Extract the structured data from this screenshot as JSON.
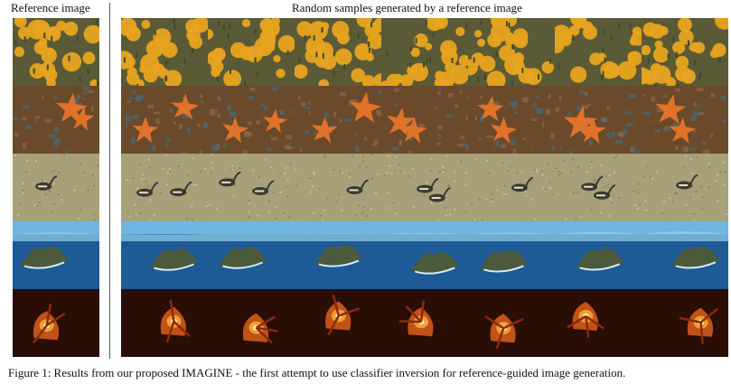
{
  "headers": {
    "reference": "Reference image",
    "samples": "Random samples generated by a reference image"
  },
  "caption": "Figure 1: Results from our proposed IMAGINE - the first attempt to use classifier inversion for reference-guided image generation.",
  "rows": [
    {
      "subject": "orange flowers",
      "sample_count": 7
    },
    {
      "subject": "starfish",
      "sample_count": 7
    },
    {
      "subject": "water bird",
      "sample_count": 7
    },
    {
      "subject": "island",
      "sample_count": 7
    },
    {
      "subject": "fire",
      "sample_count": 7
    }
  ],
  "colors": {
    "flowers_bg": "#5b5a36",
    "flower": "#e8a420",
    "starfish_bg": "#6a4a2a",
    "starfish": "#e0722a",
    "bird_bg": "#a8a078",
    "bird": "#3a3a30",
    "sea": "#1d5a96",
    "sky": "#6fb6e0",
    "island": "#4a5a3a",
    "fire_bg": "#2a0e06",
    "fire": "#f0a030"
  }
}
